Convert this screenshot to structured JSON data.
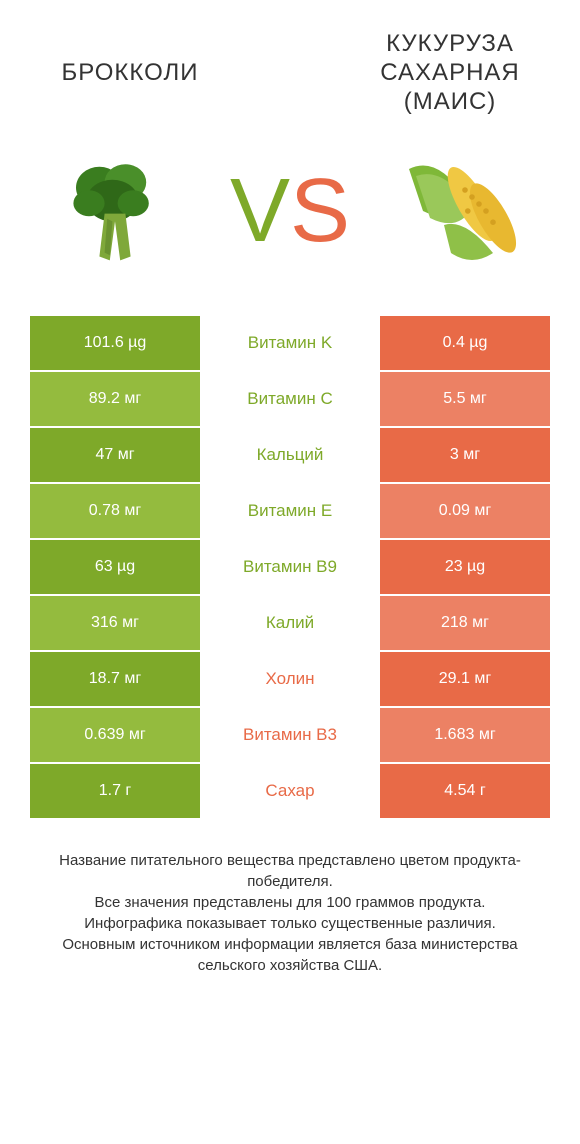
{
  "colors": {
    "green": "#7ea929",
    "green_light": "#94bb3e",
    "orange": "#e86a47",
    "orange_light": "#ec8164",
    "text": "#333333",
    "white": "#ffffff"
  },
  "left_label": "БРОККОЛИ",
  "right_label": "КУКУРУЗА САХАРНАЯ (МАИС)",
  "vs_v": "V",
  "vs_s": "S",
  "rows": [
    {
      "left": "101.6 µg",
      "mid": "Витамин K",
      "right": "0.4 µg",
      "winner": "left"
    },
    {
      "left": "89.2 мг",
      "mid": "Витамин C",
      "right": "5.5 мг",
      "winner": "left"
    },
    {
      "left": "47 мг",
      "mid": "Кальций",
      "right": "3 мг",
      "winner": "left"
    },
    {
      "left": "0.78 мг",
      "mid": "Витамин E",
      "right": "0.09 мг",
      "winner": "left"
    },
    {
      "left": "63 µg",
      "mid": "Витамин B9",
      "right": "23 µg",
      "winner": "left"
    },
    {
      "left": "316 мг",
      "mid": "Калий",
      "right": "218 мг",
      "winner": "left"
    },
    {
      "left": "18.7 мг",
      "mid": "Холин",
      "right": "29.1 мг",
      "winner": "right"
    },
    {
      "left": "0.639 мг",
      "mid": "Витамин B3",
      "right": "1.683 мг",
      "winner": "right"
    },
    {
      "left": "1.7 г",
      "mid": "Сахар",
      "right": "4.54 г",
      "winner": "right"
    }
  ],
  "footer_lines": [
    "Название питательного вещества представлено цветом продукта-победителя.",
    "Все значения представлены для 100 граммов продукта.",
    "Инфографика показывает только существенные различия.",
    "Основным источником информации является база министерства сельского хозяйства США."
  ]
}
